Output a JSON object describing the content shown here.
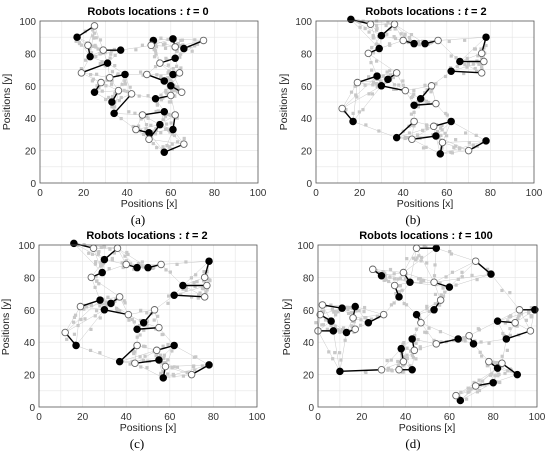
{
  "figure": {
    "panels": [
      {
        "title_prefix": "Robots locations : ",
        "title_var": "t",
        "title_suffix": " = 0",
        "xlabel": "Positions [x]",
        "ylabel": "Positions [y]",
        "caption": "(a)",
        "xticks": [
          "0",
          "20",
          "40",
          "60",
          "80",
          "100"
        ],
        "yticks": [
          "0",
          "20",
          "40",
          "60",
          "80",
          "100"
        ]
      },
      {
        "title_prefix": "Robots locations : ",
        "title_var": "t",
        "title_suffix": " = 2",
        "xlabel": "Positions [x]",
        "ylabel": "Positions [y]",
        "caption": "(b)",
        "xticks": [
          "0",
          "20",
          "40",
          "60",
          "80",
          "100"
        ],
        "yticks": [
          "0",
          "20",
          "40",
          "60",
          "80",
          "100"
        ]
      },
      {
        "title_prefix": "Robots locations : ",
        "title_var": "t",
        "title_suffix": " = 2",
        "xlabel": "Positions [x]",
        "ylabel": "Positions [y]",
        "caption": "(c)",
        "xticks": [
          "0",
          "20",
          "40",
          "60",
          "80",
          "100"
        ],
        "yticks": [
          "0",
          "20",
          "40",
          "60",
          "80",
          "100"
        ]
      },
      {
        "title_prefix": "Robots locations : ",
        "title_var": "t",
        "title_suffix": " = 100",
        "xlabel": "Positions [x]",
        "ylabel": "Positions [y]",
        "caption": "(d)",
        "xticks": [
          "0",
          "20",
          "40",
          "60",
          "80",
          "100"
        ],
        "yticks": [
          "0",
          "20",
          "40",
          "60",
          "80",
          "100"
        ]
      }
    ]
  },
  "chart_data": [
    {
      "type": "scatter",
      "title": "Robots locations : t = 0",
      "xlabel": "Positions [x]",
      "ylabel": "Positions [y]",
      "xlim": [
        0,
        100
      ],
      "ylim": [
        0,
        100
      ],
      "grid": true,
      "robots": [
        {
          "open": [
            25,
            97
          ],
          "filled": [
            17,
            90
          ]
        },
        {
          "open": [
            22,
            85
          ],
          "filled": [
            23,
            78
          ]
        },
        {
          "open": [
            19,
            68
          ],
          "filled": [
            31,
            74
          ]
        },
        {
          "open": [
            28,
            62
          ],
          "filled": [
            25,
            56
          ]
        },
        {
          "open": [
            32,
            65
          ],
          "filled": [
            39,
            67
          ]
        },
        {
          "open": [
            36,
            57
          ],
          "filled": [
            33,
            50
          ]
        },
        {
          "open": [
            42,
            55
          ],
          "filled": [
            34,
            43
          ]
        },
        {
          "open": [
            29,
            82
          ],
          "filled": [
            37,
            82
          ]
        },
        {
          "open": [
            51,
            85
          ],
          "filled": [
            52,
            88
          ]
        },
        {
          "open": [
            62,
            84
          ],
          "filled": [
            61,
            89
          ]
        },
        {
          "open": [
            75,
            88
          ],
          "filled": [
            66,
            83
          ]
        },
        {
          "open": [
            49,
            67
          ],
          "filled": [
            57,
            63
          ]
        },
        {
          "open": [
            55,
            74
          ],
          "filled": [
            62,
            77
          ]
        },
        {
          "open": [
            64,
            68
          ],
          "filled": [
            61,
            67
          ]
        },
        {
          "open": [
            65,
            56
          ],
          "filled": [
            60,
            60
          ]
        },
        {
          "open": [
            60,
            54
          ],
          "filled": [
            53,
            52
          ]
        },
        {
          "open": [
            47,
            42
          ],
          "filled": [
            57,
            44
          ]
        },
        {
          "open": [
            44,
            33
          ],
          "filled": [
            50,
            31
          ]
        },
        {
          "open": [
            50,
            27
          ],
          "filled": [
            55,
            36
          ]
        },
        {
          "open": [
            66,
            24
          ],
          "filled": [
            57,
            19
          ]
        },
        {
          "open": [
            62,
            42
          ],
          "filled": [
            61,
            33
          ]
        }
      ]
    },
    {
      "type": "scatter",
      "title": "Robots locations : t = 2",
      "xlabel": "Positions [x]",
      "ylabel": "Positions [y]",
      "xlim": [
        0,
        100
      ],
      "ylim": [
        0,
        100
      ],
      "grid": true,
      "robots": [
        {
          "open": [
            25,
            98
          ],
          "filled": [
            16,
            101
          ]
        },
        {
          "open": [
            24,
            80
          ],
          "filled": [
            29,
            83
          ]
        },
        {
          "open": [
            19,
            62
          ],
          "filled": [
            28,
            66
          ]
        },
        {
          "open": [
            36,
            98
          ],
          "filled": [
            30,
            91
          ]
        },
        {
          "open": [
            40,
            88
          ],
          "filled": [
            45,
            86
          ]
        },
        {
          "open": [
            56,
            88
          ],
          "filled": [
            50,
            86
          ]
        },
        {
          "open": [
            76,
            80
          ],
          "filled": [
            78,
            90
          ]
        },
        {
          "open": [
            77,
            75
          ],
          "filled": [
            66,
            75
          ]
        },
        {
          "open": [
            76,
            68
          ],
          "filled": [
            62,
            69
          ]
        },
        {
          "open": [
            37,
            68
          ],
          "filled": [
            33,
            64
          ]
        },
        {
          "open": [
            41,
            57
          ],
          "filled": [
            30,
            60
          ]
        },
        {
          "open": [
            53,
            60
          ],
          "filled": [
            48,
            52
          ]
        },
        {
          "open": [
            55,
            49
          ],
          "filled": [
            45,
            48
          ]
        },
        {
          "open": [
            12,
            46
          ],
          "filled": [
            17,
            38
          ]
        },
        {
          "open": [
            45,
            38
          ],
          "filled": [
            37,
            28
          ]
        },
        {
          "open": [
            54,
            35
          ],
          "filled": [
            62,
            38
          ]
        },
        {
          "open": [
            44,
            27
          ],
          "filled": [
            55,
            29
          ]
        },
        {
          "open": [
            70,
            20
          ],
          "filled": [
            78,
            26
          ]
        },
        {
          "open": [
            58,
            25
          ],
          "filled": [
            57,
            18
          ]
        }
      ]
    },
    {
      "type": "scatter",
      "title": "Robots locations : t = 2",
      "xlabel": "Positions [x]",
      "ylabel": "Positions [y]",
      "xlim": [
        0,
        100
      ],
      "ylim": [
        0,
        100
      ],
      "grid": true,
      "robots": [
        {
          "open": [
            25,
            98
          ],
          "filled": [
            16,
            101
          ]
        },
        {
          "open": [
            24,
            80
          ],
          "filled": [
            29,
            83
          ]
        },
        {
          "open": [
            19,
            62
          ],
          "filled": [
            28,
            66
          ]
        },
        {
          "open": [
            36,
            98
          ],
          "filled": [
            30,
            91
          ]
        },
        {
          "open": [
            40,
            88
          ],
          "filled": [
            45,
            86
          ]
        },
        {
          "open": [
            56,
            88
          ],
          "filled": [
            50,
            86
          ]
        },
        {
          "open": [
            76,
            80
          ],
          "filled": [
            78,
            90
          ]
        },
        {
          "open": [
            77,
            75
          ],
          "filled": [
            66,
            75
          ]
        },
        {
          "open": [
            76,
            68
          ],
          "filled": [
            62,
            69
          ]
        },
        {
          "open": [
            37,
            68
          ],
          "filled": [
            33,
            64
          ]
        },
        {
          "open": [
            41,
            57
          ],
          "filled": [
            30,
            60
          ]
        },
        {
          "open": [
            53,
            60
          ],
          "filled": [
            48,
            52
          ]
        },
        {
          "open": [
            55,
            49
          ],
          "filled": [
            45,
            48
          ]
        },
        {
          "open": [
            12,
            46
          ],
          "filled": [
            17,
            38
          ]
        },
        {
          "open": [
            45,
            38
          ],
          "filled": [
            37,
            28
          ]
        },
        {
          "open": [
            54,
            35
          ],
          "filled": [
            62,
            38
          ]
        },
        {
          "open": [
            44,
            27
          ],
          "filled": [
            55,
            29
          ]
        },
        {
          "open": [
            70,
            20
          ],
          "filled": [
            78,
            26
          ]
        },
        {
          "open": [
            58,
            25
          ],
          "filled": [
            57,
            18
          ]
        }
      ]
    },
    {
      "type": "scatter",
      "title": "Robots locations : t = 100",
      "xlabel": "Positions [x]",
      "ylabel": "Positions [y]",
      "xlim": [
        0,
        100
      ],
      "ylim": [
        0,
        100
      ],
      "grid": true,
      "robots": [
        {
          "open": [
            45,
            98
          ],
          "filled": [
            54,
            98
          ]
        },
        {
          "open": [
            72,
            90
          ],
          "filled": [
            79,
            82
          ]
        },
        {
          "open": [
            25,
            85
          ],
          "filled": [
            29,
            81
          ]
        },
        {
          "open": [
            35,
            75
          ],
          "filled": [
            37,
            68
          ]
        },
        {
          "open": [
            39,
            83
          ],
          "filled": [
            42,
            77
          ]
        },
        {
          "open": [
            53,
            77
          ],
          "filled": [
            60,
            74
          ]
        },
        {
          "open": [
            2,
            63
          ],
          "filled": [
            11,
            61
          ]
        },
        {
          "open": [
            16,
            55
          ],
          "filled": [
            17,
            62
          ]
        },
        {
          "open": [
            1,
            57
          ],
          "filled": [
            6,
            53
          ]
        },
        {
          "open": [
            0,
            47
          ],
          "filled": [
            7,
            47
          ]
        },
        {
          "open": [
            17,
            48
          ],
          "filled": [
            13,
            46
          ]
        },
        {
          "open": [
            30,
            57
          ],
          "filled": [
            23,
            52
          ]
        },
        {
          "open": [
            47,
            52
          ],
          "filled": [
            45,
            57
          ]
        },
        {
          "open": [
            56,
            66
          ],
          "filled": [
            53,
            60
          ]
        },
        {
          "open": [
            92,
            60
          ],
          "filled": [
            99,
            60
          ]
        },
        {
          "open": [
            90,
            52
          ],
          "filled": [
            82,
            53
          ]
        },
        {
          "open": [
            97,
            47
          ],
          "filled": [
            86,
            42
          ]
        },
        {
          "open": [
            69,
            44
          ],
          "filled": [
            71,
            39
          ]
        },
        {
          "open": [
            54,
            39
          ],
          "filled": [
            64,
            42
          ]
        },
        {
          "open": [
            44,
            35
          ],
          "filled": [
            43,
            42
          ]
        },
        {
          "open": [
            39,
            28
          ],
          "filled": [
            38,
            36
          ]
        },
        {
          "open": [
            37,
            23
          ],
          "filled": [
            43,
            23
          ]
        },
        {
          "open": [
            29,
            23
          ],
          "filled": [
            10,
            22
          ]
        },
        {
          "open": [
            78,
            28
          ],
          "filled": [
            82,
            24
          ]
        },
        {
          "open": [
            84,
            27
          ],
          "filled": [
            91,
            20
          ]
        },
        {
          "open": [
            72,
            13
          ],
          "filled": [
            80,
            15
          ]
        },
        {
          "open": [
            63,
            7
          ],
          "filled": [
            65,
            4
          ]
        }
      ]
    }
  ]
}
